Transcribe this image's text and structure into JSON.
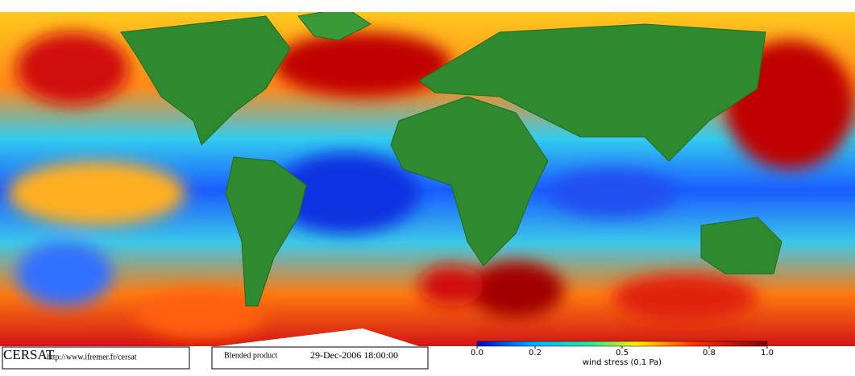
{
  "footer": {
    "logo": "CERSAT",
    "url": "http://www.ifremer.fr/cersat",
    "product": "Blended product",
    "date": "29-Dec-2006 18:00:00"
  },
  "colorbar": {
    "label": "wind stress (0.1 Pa)",
    "lim": [
      0,
      1
    ],
    "ticks": [
      {
        "value": 0,
        "label": "0.0"
      },
      0.2,
      0.5,
      0.8,
      {
        "value": 1,
        "label": "1.0"
      }
    ]
  }
}
